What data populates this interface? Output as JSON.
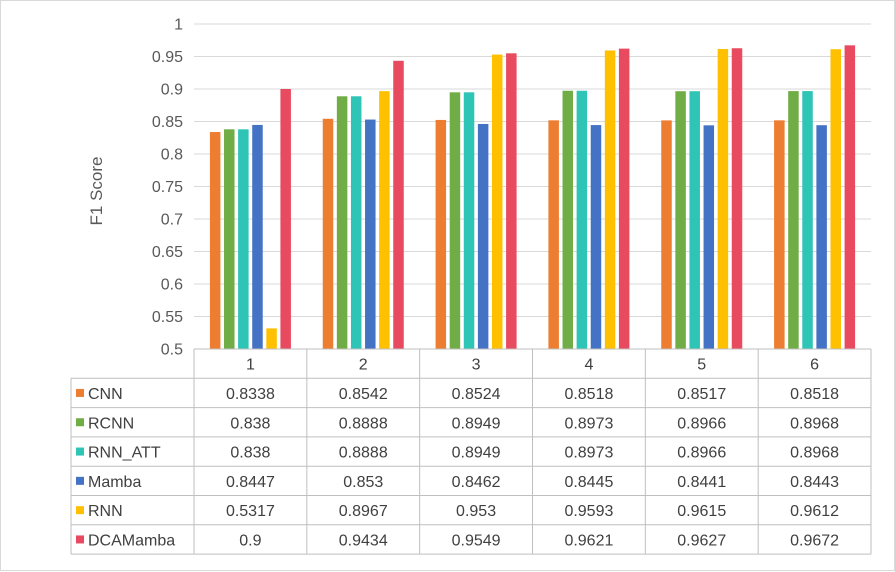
{
  "chart_data": {
    "type": "bar",
    "title": "",
    "xlabel": "",
    "ylabel": "F1 Score",
    "ylim": [
      0.5,
      1
    ],
    "yticks": [
      "0.5",
      "0.55",
      "0.6",
      "0.65",
      "0.7",
      "0.75",
      "0.8",
      "0.85",
      "0.9",
      "0.95",
      "1"
    ],
    "grid": true,
    "legend": "data-table",
    "categories": [
      "1",
      "2",
      "3",
      "4",
      "5",
      "6"
    ],
    "series": [
      {
        "name": "CNN",
        "color": "#ED7D31",
        "values": [
          0.8338,
          0.8542,
          0.8524,
          0.8518,
          0.8517,
          0.8518
        ],
        "labels": [
          "0.8338",
          "0.8542",
          "0.8524",
          "0.8518",
          "0.8517",
          "0.8518"
        ]
      },
      {
        "name": "RCNN",
        "color": "#70AD47",
        "values": [
          0.838,
          0.8888,
          0.8949,
          0.8973,
          0.8966,
          0.8968
        ],
        "labels": [
          "0.838",
          "0.8888",
          "0.8949",
          "0.8973",
          "0.8966",
          "0.8968"
        ]
      },
      {
        "name": "RNN_ATT",
        "color": "#2EC4B6",
        "values": [
          0.838,
          0.8888,
          0.8949,
          0.8973,
          0.8966,
          0.8968
        ],
        "labels": [
          "0.838",
          "0.8888",
          "0.8949",
          "0.8973",
          "0.8966",
          "0.8968"
        ]
      },
      {
        "name": "Mamba",
        "color": "#4472C4",
        "values": [
          0.8447,
          0.853,
          0.8462,
          0.8445,
          0.8441,
          0.8443
        ],
        "labels": [
          "0.8447",
          "0.853",
          "0.8462",
          "0.8445",
          "0.8441",
          "0.8443"
        ]
      },
      {
        "name": "RNN",
        "color": "#FFC000",
        "values": [
          0.5317,
          0.8967,
          0.953,
          0.9593,
          0.9615,
          0.9612
        ],
        "labels": [
          "0.5317",
          "0.8967",
          "0.953",
          "0.9593",
          "0.9615",
          "0.9612"
        ]
      },
      {
        "name": "DCAMamba",
        "color": "#E84A5F",
        "values": [
          0.9,
          0.9434,
          0.9549,
          0.9621,
          0.9627,
          0.9672
        ],
        "labels": [
          "0.9",
          "0.9434",
          "0.9549",
          "0.9621",
          "0.9627",
          "0.9672"
        ]
      }
    ]
  }
}
